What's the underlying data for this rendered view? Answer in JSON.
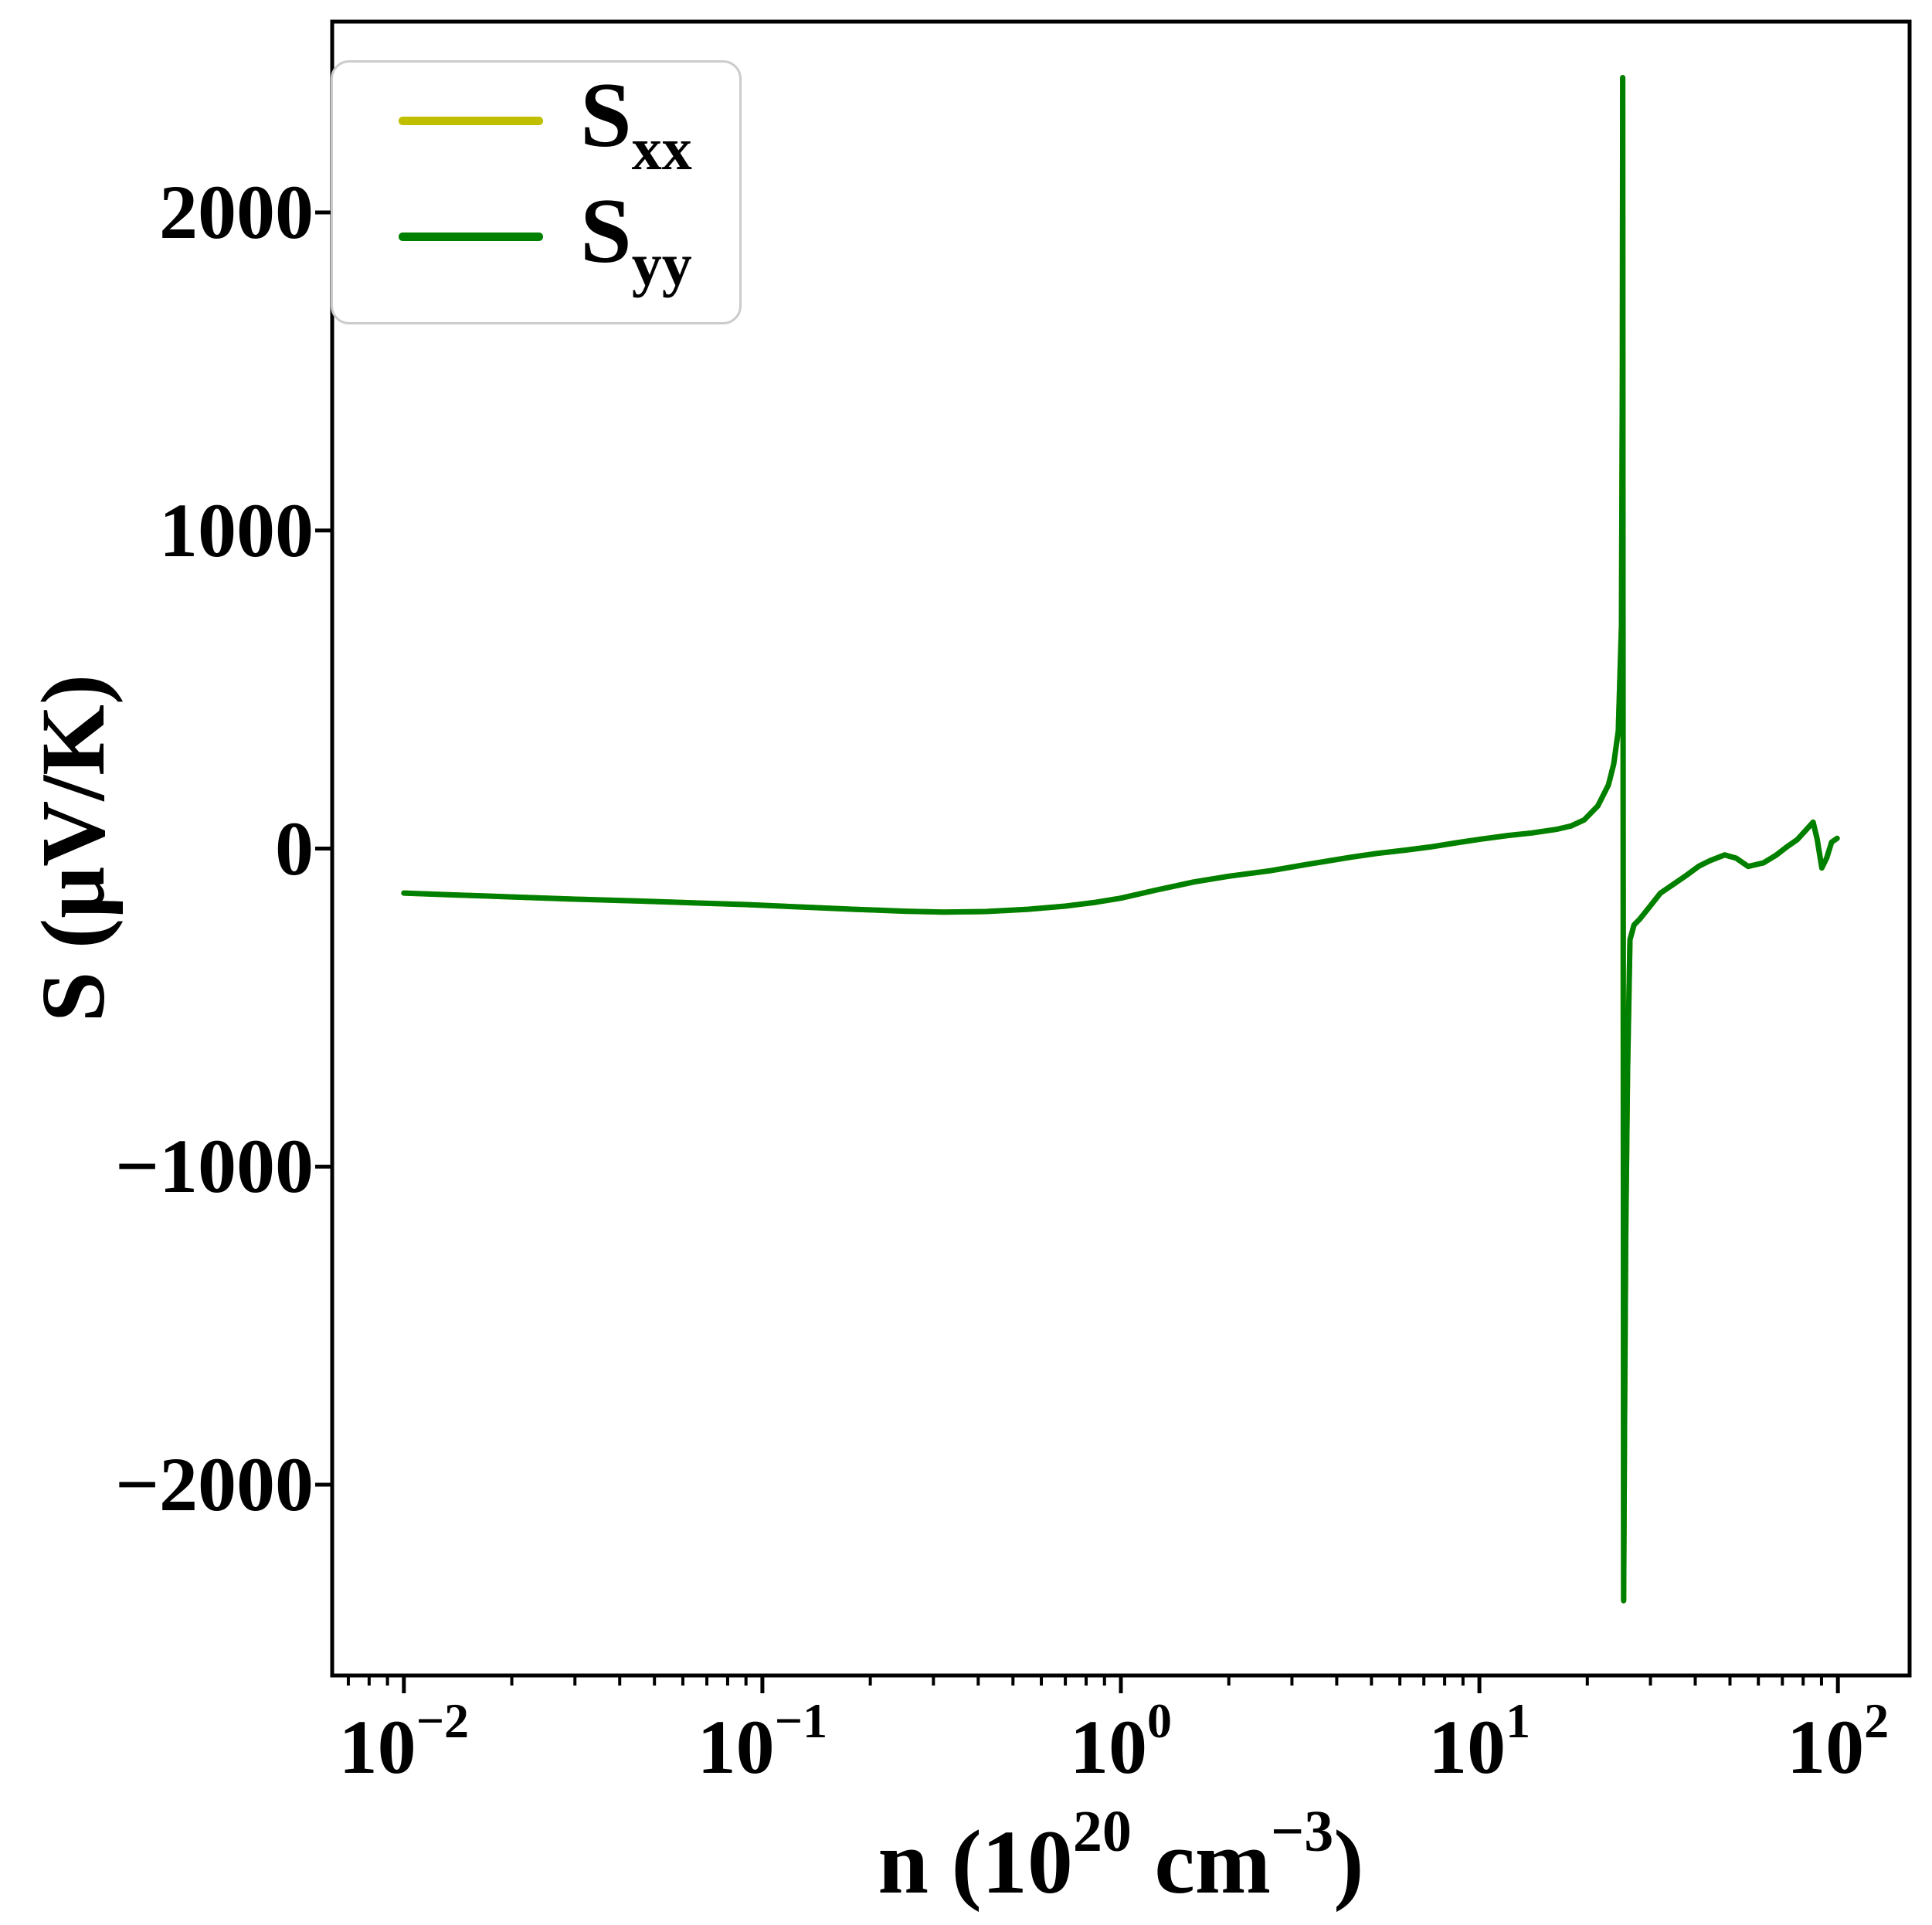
{
  "chart_data": {
    "type": "line",
    "title": "",
    "xlabel": "n (10^20 cm^-3)",
    "ylabel": "S (μV/K)",
    "xlabel_parts": {
      "pre": "n (10",
      "exp1": "20",
      "mid": " cm",
      "exp2": "−3",
      "post": ")"
    },
    "x_scale": "log",
    "xlim": [
      0.0063,
      158.5
    ],
    "ylim": [
      -2600,
      2600
    ],
    "grid": false,
    "legend_position": "upper left",
    "x_ticks": [
      {
        "value": 0.01,
        "base": "10",
        "exp": "−2"
      },
      {
        "value": 0.1,
        "base": "10",
        "exp": "−1"
      },
      {
        "value": 1,
        "base": "10",
        "exp": "0"
      },
      {
        "value": 10,
        "base": "10",
        "exp": "1"
      },
      {
        "value": 100,
        "base": "10",
        "exp": "2"
      }
    ],
    "y_ticks": [
      {
        "value": 2000,
        "label": "2000"
      },
      {
        "value": 1000,
        "label": "1000"
      },
      {
        "value": 0,
        "label": "0"
      },
      {
        "value": -1000,
        "label": "−1000"
      },
      {
        "value": -2000,
        "label": "−2000"
      }
    ],
    "x": [
      0.01,
      0.014,
      0.02,
      0.03,
      0.045,
      0.065,
      0.09,
      0.13,
      0.18,
      0.25,
      0.32,
      0.42,
      0.55,
      0.7,
      0.85,
      1.0,
      1.25,
      1.6,
      2.0,
      2.6,
      3.3,
      4.4,
      5.2,
      6.2,
      7.3,
      8.5,
      10,
      12,
      14,
      16.5,
      18,
      19.6,
      21.4,
      22.9,
      23.7,
      24.4,
      24.9,
      25.05,
      25.1,
      25.25,
      25.4,
      25.6,
      25.9,
      26.3,
      27,
      28,
      30,
      32,
      35,
      37.7,
      41,
      44,
      48.3,
      52,
      56.2,
      62,
      67.4,
      72,
      77,
      81,
      85.3,
      87.5,
      90.2,
      93,
      96,
      99.5
    ],
    "series": [
      {
        "name": "S_xx",
        "color": "#bfbf00",
        "values": [
          -140,
          -146,
          -152,
          -159,
          -165,
          -171,
          -176,
          -184,
          -191,
          -197,
          -200,
          -198,
          -191,
          -181,
          -169,
          -156,
          -131,
          -105,
          -87,
          -70,
          -50,
          -27,
          -15,
          -5,
          5,
          17,
          29,
          41,
          49,
          61,
          71,
          90,
          134,
          200,
          266,
          370,
          700,
          1500,
          2424,
          -2365,
          -1800,
          -1200,
          -700,
          -287,
          -240,
          -222,
          -180,
          -140,
          -110,
          -85,
          -55,
          -38,
          -20,
          -30,
          -56,
          -45,
          -20,
          5,
          28,
          55,
          83,
          30,
          -61,
          -30,
          20,
          32
        ]
      },
      {
        "name": "S_yy",
        "color": "#008000",
        "values": [
          -140,
          -146,
          -152,
          -159,
          -165,
          -171,
          -176,
          -184,
          -191,
          -197,
          -200,
          -198,
          -191,
          -181,
          -169,
          -156,
          -131,
          -105,
          -87,
          -70,
          -50,
          -27,
          -15,
          -5,
          5,
          17,
          29,
          41,
          49,
          61,
          71,
          90,
          134,
          200,
          266,
          370,
          700,
          1500,
          2424,
          -2365,
          -1800,
          -1200,
          -700,
          -287,
          -240,
          -222,
          -180,
          -140,
          -110,
          -85,
          -55,
          -38,
          -20,
          -30,
          -56,
          -45,
          -20,
          5,
          28,
          55,
          83,
          30,
          -61,
          -30,
          20,
          32
        ]
      }
    ]
  },
  "legend": {
    "entries": [
      {
        "label_main": "S",
        "label_sub": "xx",
        "color": "#bfbf00"
      },
      {
        "label_main": "S",
        "label_sub": "yy",
        "color": "#008000"
      }
    ]
  }
}
